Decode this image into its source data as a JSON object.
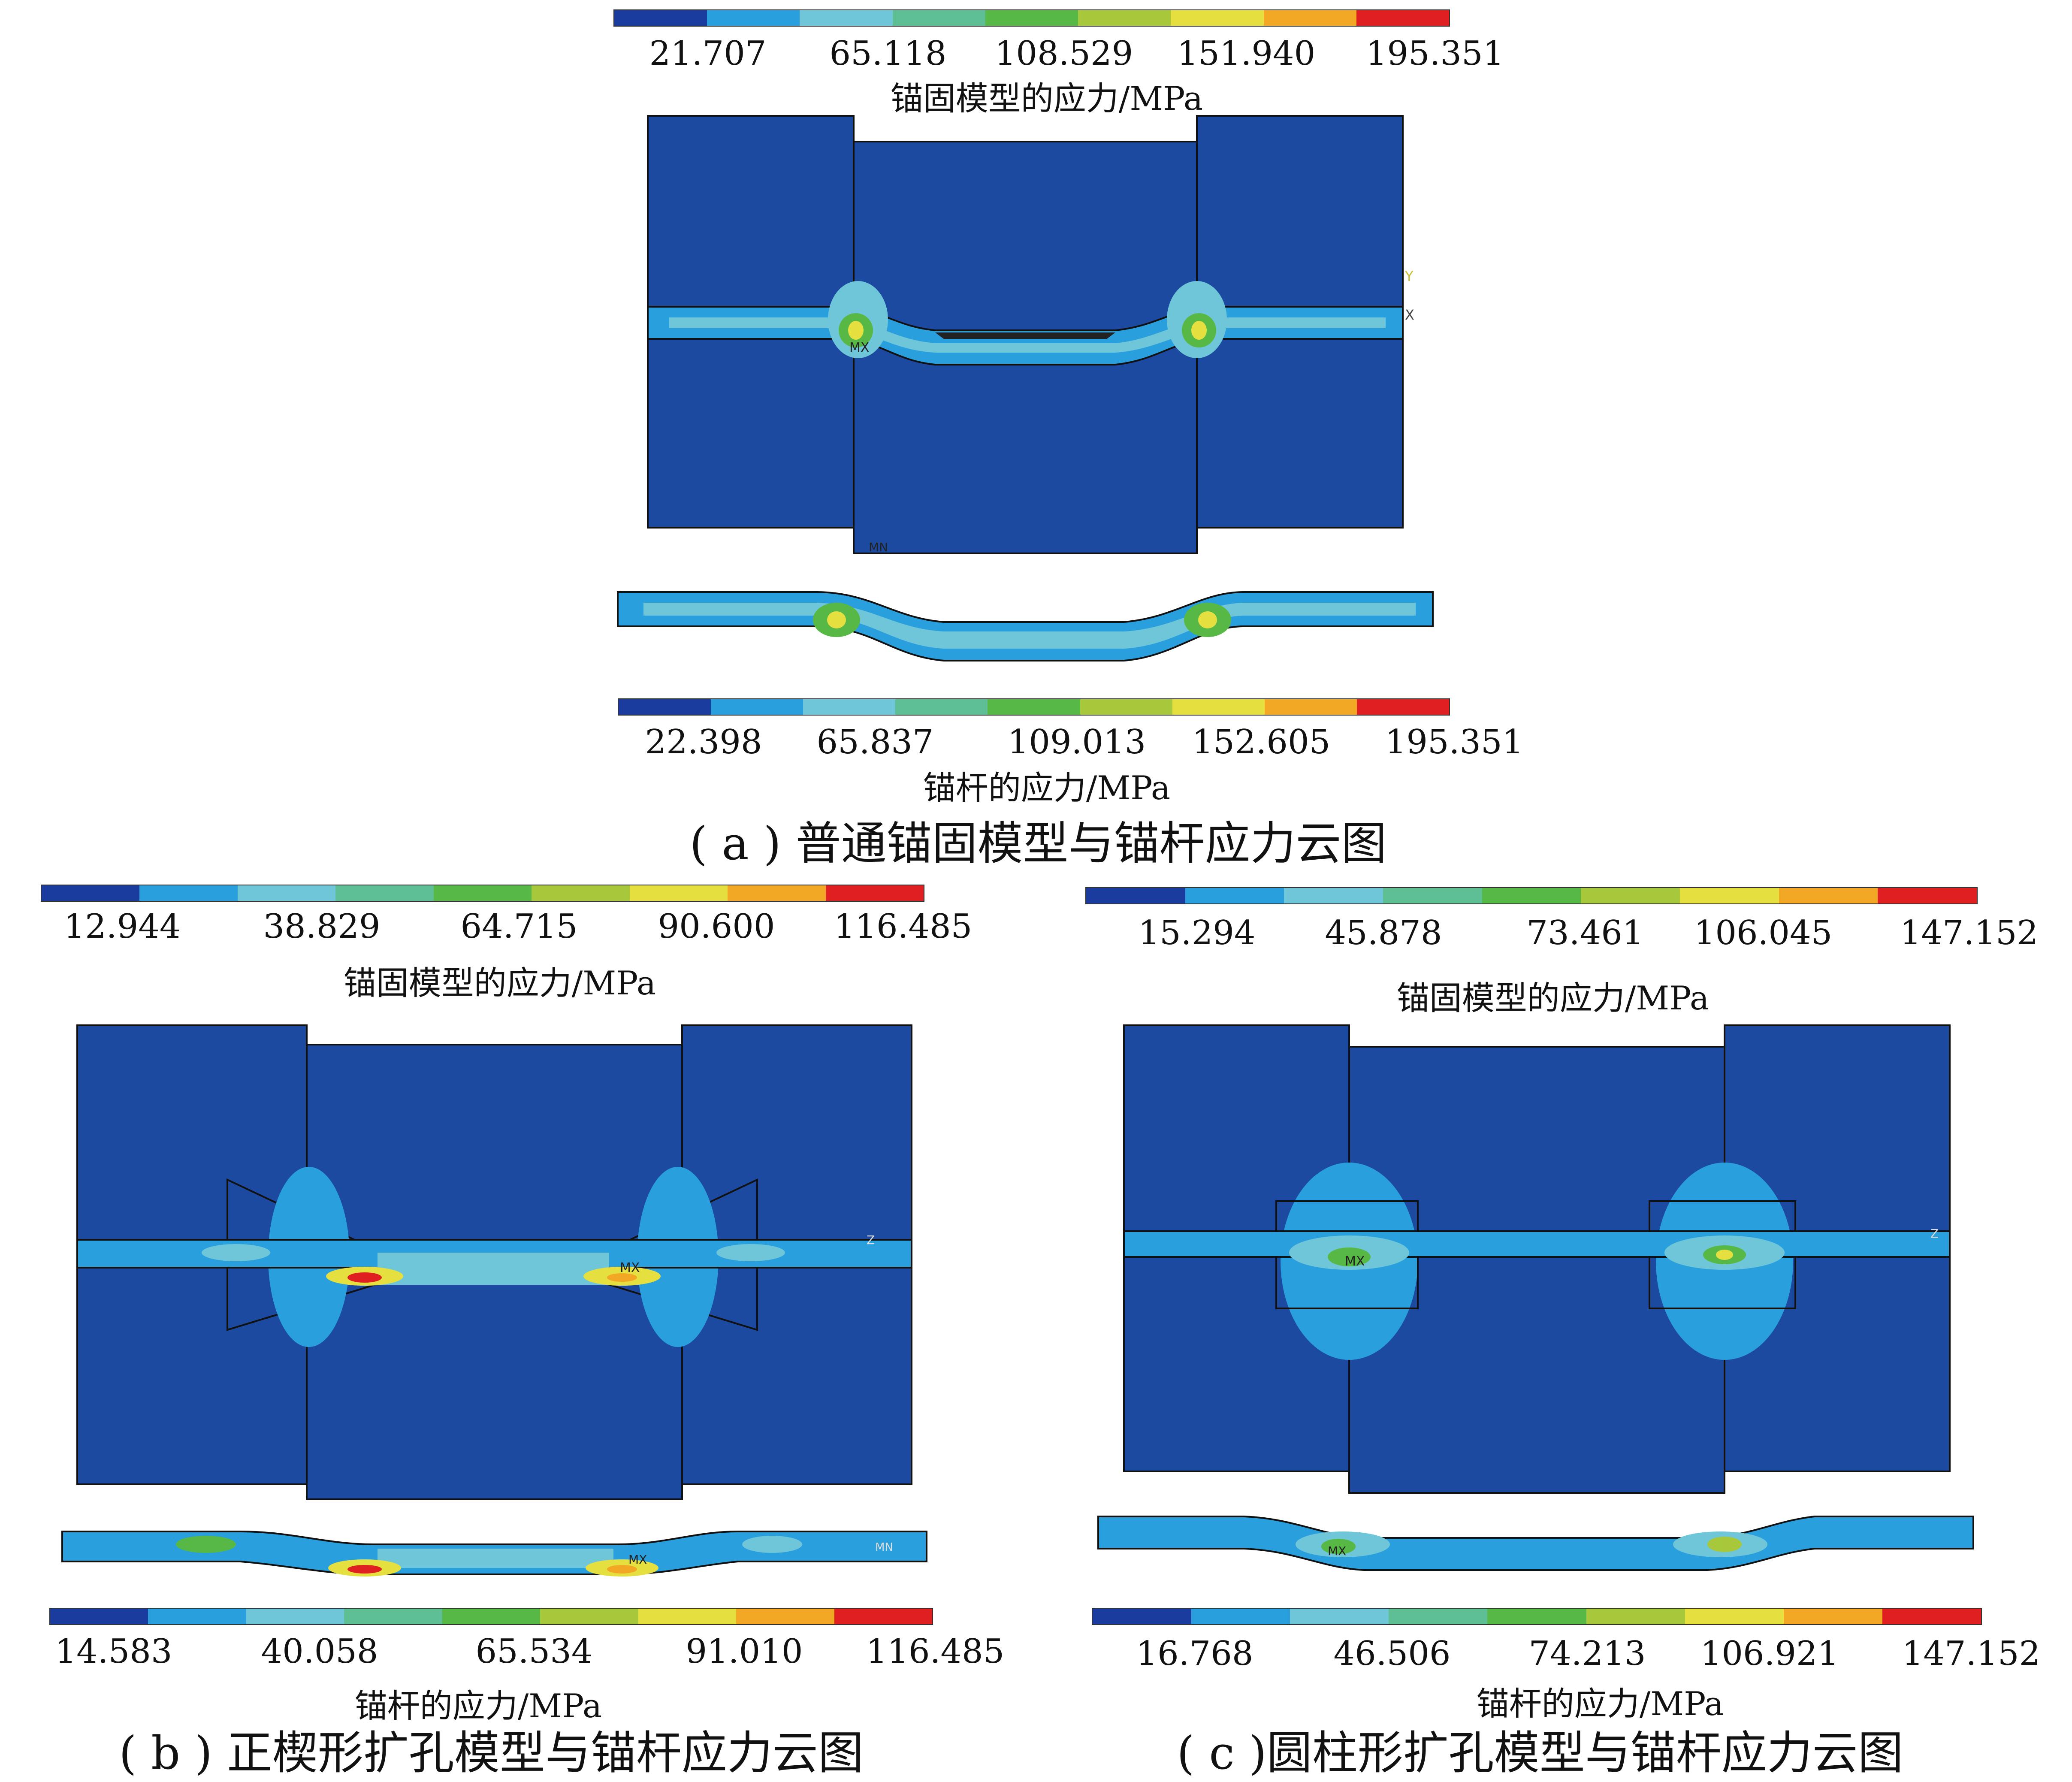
{
  "colormap": [
    "#1a3c9e",
    "#2a9fde",
    "#6ec6d8",
    "#5fbf94",
    "#57b846",
    "#a6c83a",
    "#e5e040",
    "#f2a824",
    "#e02020"
  ],
  "panels": [
    {
      "model_colorbar": {
        "ticks": [
          "21.707",
          "65.118",
          "108.529",
          "151.940",
          "195.351"
        ],
        "label": "锚固模型的应力/MPa"
      },
      "bolt_colorbar": {
        "ticks": [
          "22.398",
          "65.837",
          "109.013",
          "152.605",
          "195.351"
        ],
        "label": "锚杆的应力/MPa"
      },
      "caption": "( a ) 普通锚固模型与锚杆应力云图",
      "annotations": {
        "axis_y": "Y",
        "axis_x": "X",
        "max_marker": "MX",
        "min_marker": "MN"
      }
    },
    {
      "model_colorbar": {
        "ticks": [
          "12.944",
          "38.829",
          "64.715",
          "90.600",
          "116.485"
        ],
        "label": "锚固模型的应力/MPa"
      },
      "bolt_colorbar": {
        "ticks": [
          "14.583",
          "40.058",
          "65.534",
          "91.010",
          "116.485"
        ],
        "label": "锚杆的应力/MPa"
      },
      "caption": "( b ) 正楔形扩孔模型与锚杆应力云图",
      "annotations": {
        "max_marker": "MX",
        "axis_z": "Z",
        "min_marker": "MN"
      }
    },
    {
      "model_colorbar": {
        "ticks": [
          "15.294",
          "45.878",
          "73.461",
          "106.045",
          "147.152"
        ],
        "label": "锚固模型的应力/MPa"
      },
      "bolt_colorbar": {
        "ticks": [
          "16.768",
          "46.506",
          "74.213",
          "106.921",
          "147.152"
        ],
        "label": "锚杆的应力/MPa"
      },
      "caption": "( c )圆柱形扩孔模型与锚杆应力云图",
      "annotations": {
        "max_marker": "MX",
        "axis_z": "Z"
      }
    }
  ]
}
